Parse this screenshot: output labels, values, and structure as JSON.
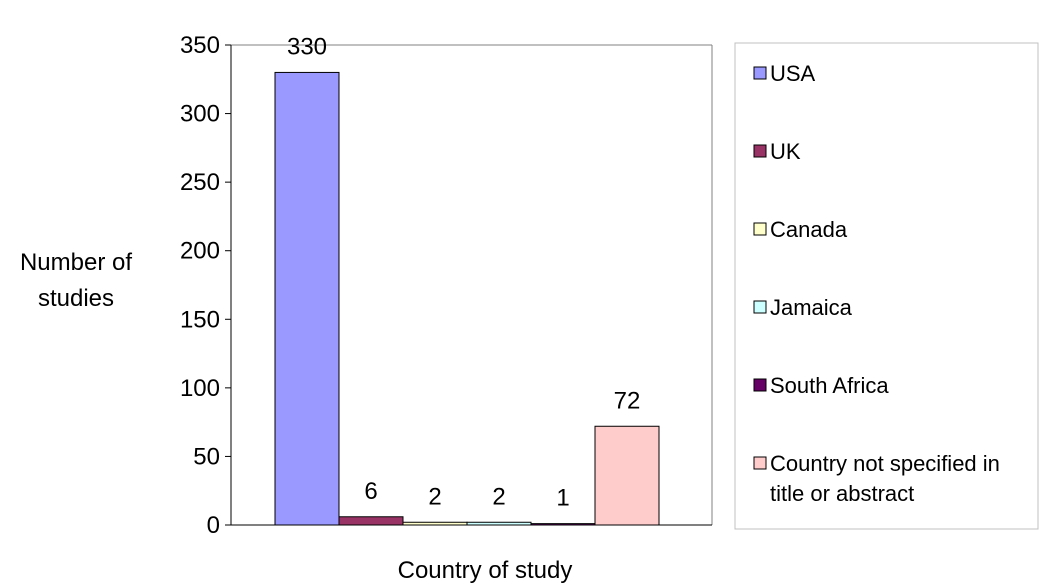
{
  "chart_data": {
    "type": "bar",
    "categories": [
      ""
    ],
    "series": [
      {
        "name": "USA",
        "values": [
          330
        ],
        "color": "#9999ff"
      },
      {
        "name": "UK",
        "values": [
          6
        ],
        "color": "#993366"
      },
      {
        "name": "Canada",
        "values": [
          2
        ],
        "color": "#ffffcc"
      },
      {
        "name": "Jamaica",
        "values": [
          2
        ],
        "color": "#ccffff"
      },
      {
        "name": "South Africa",
        "values": [
          1
        ],
        "color": "#660066"
      },
      {
        "name": "Country not specified in title or abstract",
        "values": [
          72
        ],
        "color": "#ffcccc"
      }
    ],
    "data_labels": [
      "330",
      "6",
      "2",
      "2",
      "1",
      "72"
    ],
    "title": "",
    "xlabel": "Country of study",
    "ylabel_lines": [
      "Number of",
      "studies"
    ],
    "ylim": [
      0,
      350
    ],
    "yticks": [
      0,
      50,
      100,
      150,
      200,
      250,
      300,
      350
    ],
    "grid": false,
    "legend": {
      "position": "right",
      "entries": [
        {
          "lines": [
            "USA"
          ]
        },
        {
          "lines": [
            "UK"
          ]
        },
        {
          "lines": [
            "Canada"
          ]
        },
        {
          "lines": [
            "Jamaica"
          ]
        },
        {
          "lines": [
            "South Africa"
          ]
        },
        {
          "lines": [
            "Country not specified in",
            "title or abstract"
          ]
        }
      ]
    }
  }
}
